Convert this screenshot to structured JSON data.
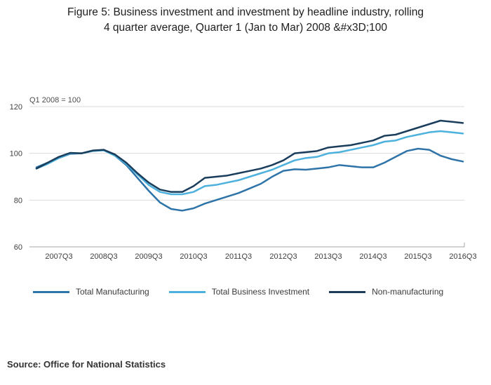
{
  "title": {
    "line1": "Figure 5: Business investment and investment by headline industry, rolling",
    "line2": "4 quarter average, Quarter 1 (Jan to Mar) 2008 &#x3D;100"
  },
  "source": "Source: Office for National Statistics",
  "chart_data": {
    "type": "line",
    "title": "Figure 5: Business investment and investment by headline industry, rolling 4 quarter average, Quarter 1 (Jan to Mar) 2008 &#x3D;100",
    "annotation": "Q1 2008 = 100",
    "ylim": [
      60,
      120
    ],
    "yticks": [
      60,
      80,
      100,
      120
    ],
    "grid": "horizontal",
    "legend_position": "bottom",
    "x": [
      "2007Q1",
      "2007Q2",
      "2007Q3",
      "2007Q4",
      "2008Q1",
      "2008Q2",
      "2008Q3",
      "2008Q4",
      "2009Q1",
      "2009Q2",
      "2009Q3",
      "2009Q4",
      "2010Q1",
      "2010Q2",
      "2010Q3",
      "2010Q4",
      "2011Q1",
      "2011Q2",
      "2011Q3",
      "2011Q4",
      "2012Q1",
      "2012Q2",
      "2012Q3",
      "2012Q4",
      "2013Q1",
      "2013Q2",
      "2013Q3",
      "2013Q4",
      "2014Q1",
      "2014Q2",
      "2014Q3",
      "2014Q4",
      "2015Q1",
      "2015Q2",
      "2015Q3",
      "2015Q4",
      "2016Q1",
      "2016Q2",
      "2016Q3"
    ],
    "x_ticks": [
      {
        "i": 2,
        "label": "2007Q3"
      },
      {
        "i": 6,
        "label": "2008Q3"
      },
      {
        "i": 10,
        "label": "2009Q3"
      },
      {
        "i": 14,
        "label": "2010Q3"
      },
      {
        "i": 18,
        "label": "2011Q3"
      },
      {
        "i": 22,
        "label": "2012Q3"
      },
      {
        "i": 26,
        "label": "2013Q3"
      },
      {
        "i": 30,
        "label": "2014Q3"
      },
      {
        "i": 34,
        "label": "2015Q3"
      },
      {
        "i": 38,
        "label": "2016Q3"
      }
    ],
    "series": [
      {
        "name": "Total Manufacturing",
        "color": "#2e74a8",
        "values": [
          94.0,
          96.0,
          98.0,
          99.8,
          100.0,
          101.0,
          101.5,
          99.0,
          95.0,
          89.5,
          84.0,
          79.0,
          76.2,
          75.5,
          76.5,
          78.5,
          80.0,
          81.5,
          83.0,
          85.0,
          87.0,
          90.0,
          92.5,
          93.2,
          93.0,
          93.5,
          94.0,
          95.0,
          94.5,
          94.0,
          94.0,
          96.0,
          98.5,
          101.0,
          102.0,
          101.5,
          99.0,
          97.5,
          96.5
        ]
      },
      {
        "name": "Total Business Investment",
        "color": "#4cb1dd",
        "values": [
          93.5,
          95.5,
          98.0,
          100.0,
          100.0,
          101.0,
          101.3,
          99.0,
          95.5,
          91.0,
          86.5,
          83.5,
          82.5,
          82.5,
          83.5,
          86.0,
          86.5,
          87.5,
          88.5,
          90.0,
          91.5,
          93.0,
          95.0,
          97.0,
          98.0,
          98.5,
          100.0,
          100.5,
          101.5,
          102.5,
          103.5,
          105.0,
          105.5,
          107.0,
          108.0,
          109.0,
          109.5,
          109.0,
          108.5
        ]
      },
      {
        "name": "Non-manufacturing",
        "color": "#1a3d5c",
        "values": [
          93.5,
          96.0,
          98.5,
          100.2,
          100.0,
          101.2,
          101.5,
          99.5,
          96.0,
          91.5,
          87.5,
          84.5,
          83.5,
          83.5,
          86.0,
          89.5,
          90.0,
          90.5,
          91.5,
          92.5,
          93.5,
          95.0,
          97.0,
          100.0,
          100.5,
          101.0,
          102.5,
          103.0,
          103.5,
          104.5,
          105.5,
          107.5,
          108.0,
          109.5,
          111.0,
          112.5,
          114.0,
          113.5,
          113.0
        ]
      }
    ],
    "colors": {
      "gridline": "#d9d9d9",
      "axis": "#a6a6a6",
      "tick_text": "#404040"
    }
  }
}
